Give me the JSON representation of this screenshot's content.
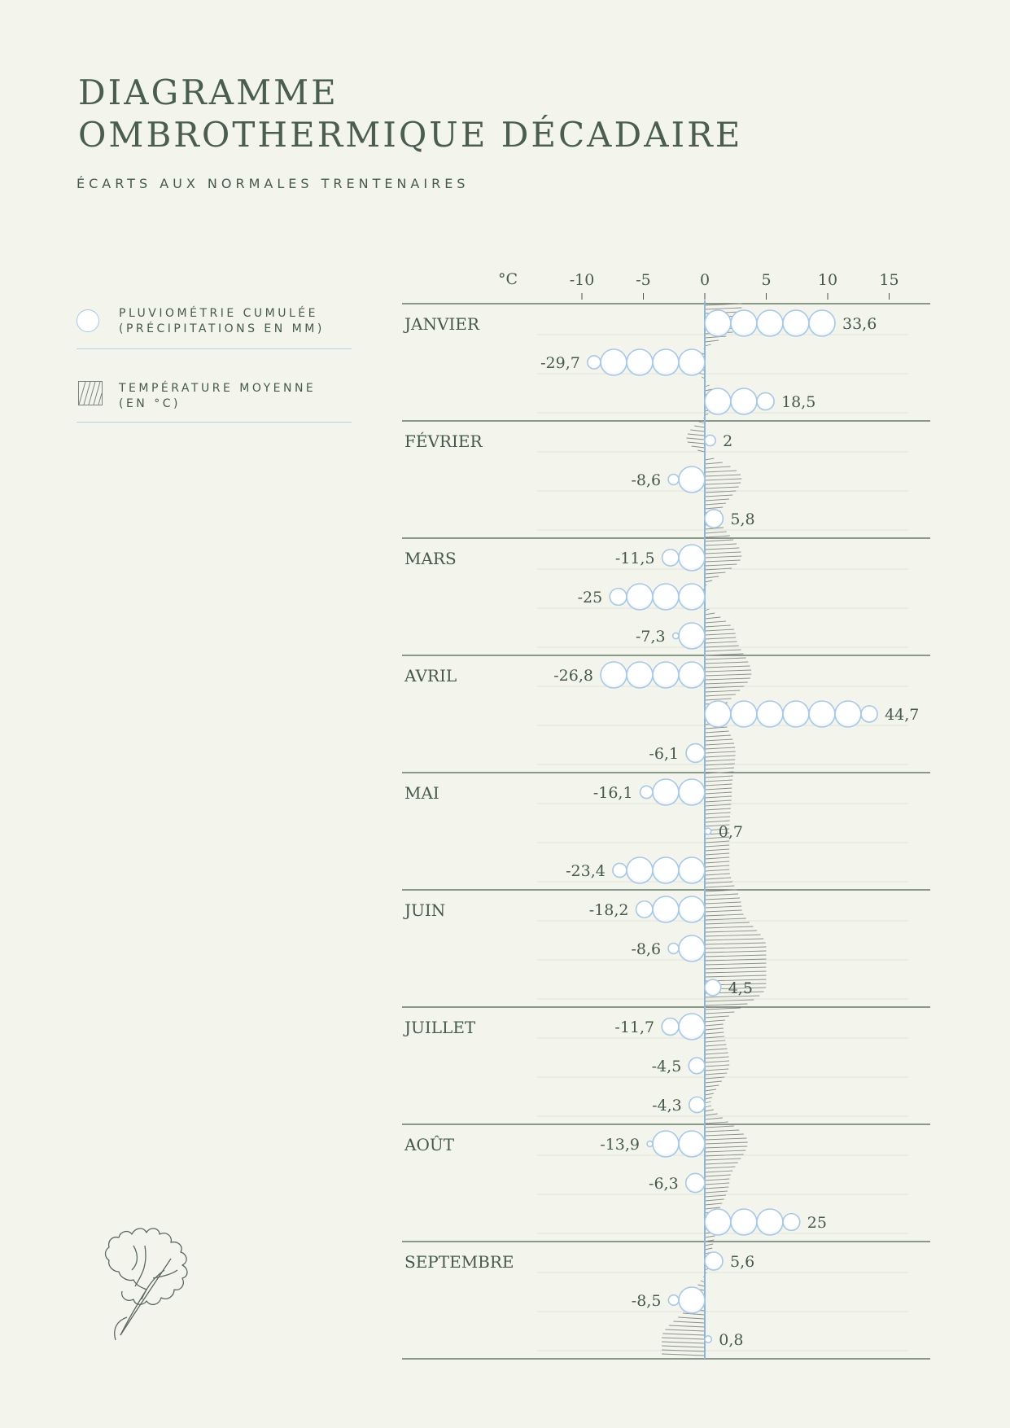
{
  "title": {
    "line1": "DIAGRAMME",
    "line2": "OMBROTHERMIQUE DÉCADAIRE"
  },
  "subtitle": "ÉCARTS AUX NORMALES TRENTENAIRES",
  "legend": {
    "rain_line1": "PLUVIOMÉTRIE CUMULÉE",
    "rain_line2": "(PRÉCIPITATIONS EN MM)",
    "temp_line1": "TEMPÉRATURE MOYENNE",
    "temp_line2": "(EN °C)"
  },
  "icons": {
    "rain": "circle-icon",
    "temperature": "hatch-icon",
    "ornament": "leaf-icon"
  },
  "colors": {
    "text": "#46594a",
    "axis": "#8ab6e0",
    "circle_stroke": "#a9c8e4",
    "hatch": "#8a8f88"
  },
  "chart_data": {
    "type": "ombrothermic-decadal",
    "title": "DIAGRAMME OMBROTHERMIQUE DÉCADAIRE",
    "subtitle": "ÉCARTS AUX NORMALES TRENTENAIRES",
    "unit_label": "°C",
    "x_ticks": [
      -10,
      -5,
      0,
      5,
      10,
      15
    ],
    "xlim": [
      -14.5,
      17
    ],
    "months": [
      "JANVIER",
      "FÉVRIER",
      "MARS",
      "AVRIL",
      "MAI",
      "JUIN",
      "JUILLET",
      "AOÛT",
      "SEPTEMBRE"
    ],
    "precipitation_labels": [
      "33,6",
      "-29,7",
      "18,5",
      "2",
      "-8,6",
      "5,8",
      "-11,5",
      "-25",
      "-7,3",
      "-26,8",
      "44,7",
      "-6,1",
      "-16,1",
      "0,7",
      "-23,4",
      "-18,2",
      "-8,6",
      "4,5",
      "-11,7",
      "-4,5",
      "-4,3",
      "-13,9",
      "-6,3",
      "25",
      "5,6",
      "-8,5",
      "0,8"
    ],
    "precipitation_anomaly_mm": [
      33.6,
      -29.7,
      18.5,
      2,
      -8.6,
      5.8,
      -11.5,
      -25,
      -7.3,
      -26.8,
      44.7,
      -6.1,
      -16.1,
      0.7,
      -23.4,
      -18.2,
      -8.6,
      4.5,
      -11.7,
      -4.5,
      -4.3,
      -13.9,
      -6.3,
      25,
      5.6,
      -8.5,
      0.8
    ],
    "temperature_anomaly_c": [
      3.0,
      -1.0,
      1.0,
      -1.5,
      3.0,
      1.2,
      3.0,
      -0.5,
      2.5,
      3.8,
      1.5,
      2.5,
      2.2,
      2.0,
      2.0,
      3.0,
      5.0,
      5.0,
      1.5,
      2.0,
      0.5,
      3.5,
      2.0,
      1.0,
      0.5,
      -1.0,
      -3.5
    ]
  }
}
